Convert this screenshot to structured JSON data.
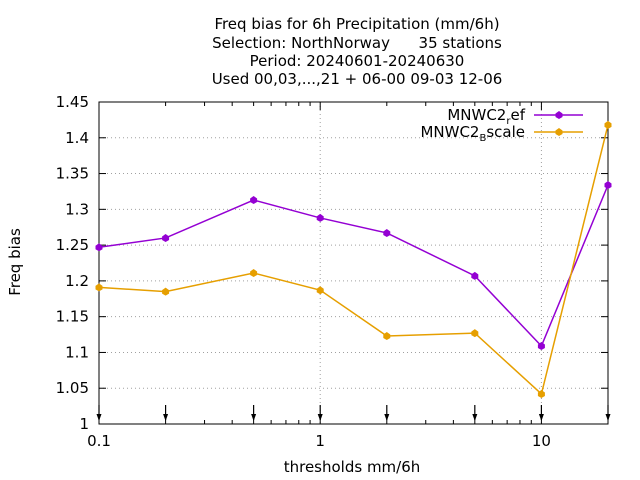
{
  "chart_data": {
    "type": "line",
    "title_lines": [
      "Freq bias  for 6h Precipitation (mm/6h)",
      "Selection: NorthNorway      35 stations",
      "Period: 20240601-20240630",
      "Used 00,03,...,21 + 06-00 09-03 12-06"
    ],
    "xlabel": "thresholds mm/6h",
    "ylabel": "Freq bias",
    "x_scale": "log",
    "xlim": [
      0.1,
      20
    ],
    "ylim": [
      1.0,
      1.45
    ],
    "x_ticks": [
      0.1,
      1,
      10
    ],
    "x_tick_labels": [
      "0.1",
      "1",
      "10"
    ],
    "y_ticks": [
      1,
      1.05,
      1.1,
      1.15,
      1.2,
      1.25,
      1.3,
      1.35,
      1.4,
      1.45
    ],
    "y_tick_labels": [
      "1",
      "1.05",
      "1.1",
      "1.15",
      "1.2",
      "1.25",
      "1.3",
      "1.35",
      "1.4",
      "1.45"
    ],
    "grid": true,
    "legend_position": "top-right",
    "x": [
      0.1,
      0.2,
      0.5,
      1,
      2,
      5,
      10,
      20
    ],
    "series": [
      {
        "name_base": "MNWC2",
        "name_sub": "r",
        "name_rest": "ef",
        "color": "#9400D3",
        "values": [
          1.247,
          1.26,
          1.313,
          1.288,
          1.267,
          1.207,
          1.109,
          1.334
        ]
      },
      {
        "name_base": "MNWC2",
        "name_sub": "B",
        "name_rest": "scale",
        "color": "#E69F00",
        "values": [
          1.191,
          1.185,
          1.211,
          1.187,
          1.123,
          1.127,
          1.042,
          1.418
        ]
      }
    ]
  }
}
